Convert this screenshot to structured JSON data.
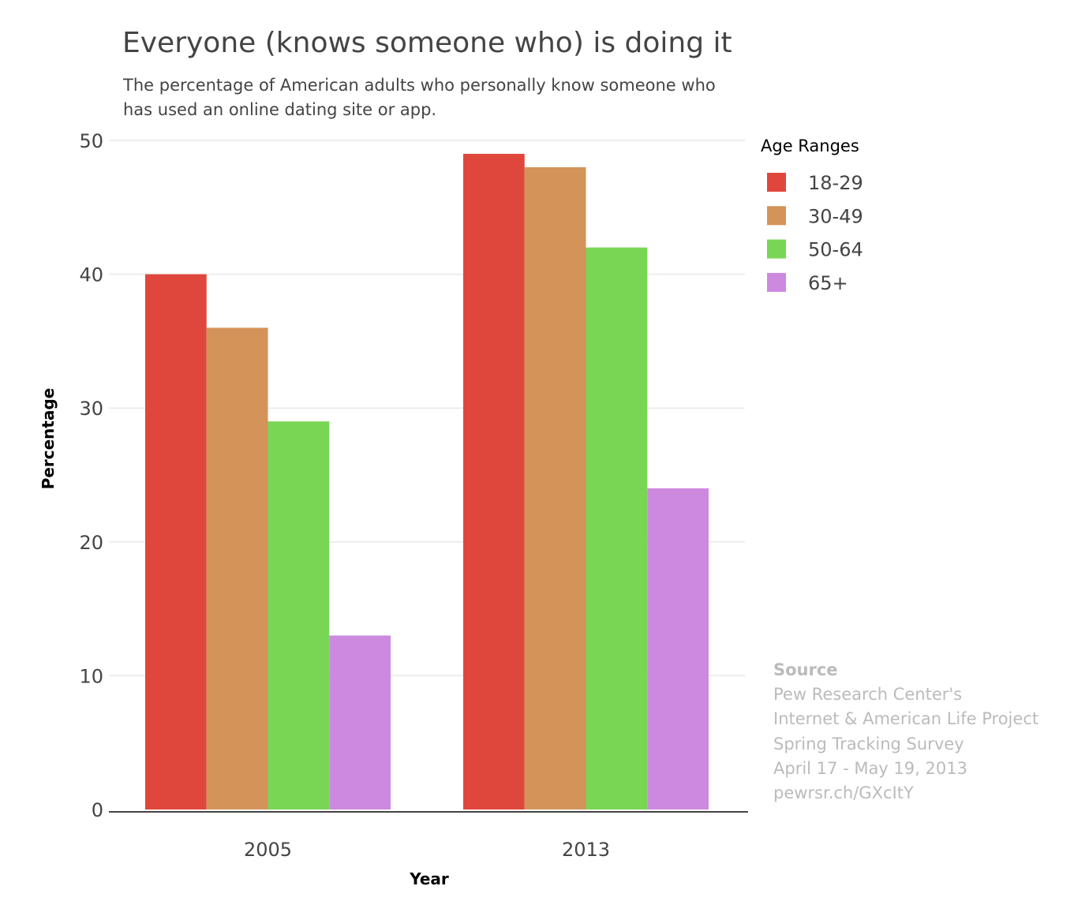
{
  "chart_data": {
    "type": "bar",
    "title": "Everyone (knows someone who) is doing it",
    "subtitle_lines": [
      "The percentage of American adults who personally know someone who",
      "has used an online dating site or app."
    ],
    "xlabel": "Year",
    "ylabel": "Percentage",
    "categories": [
      "2005",
      "2013"
    ],
    "ylim": [
      0,
      50
    ],
    "yticks": [
      0,
      10,
      20,
      30,
      40,
      50
    ],
    "grid": true,
    "legend_title": "Age Ranges",
    "legend_position": "top-right",
    "series": [
      {
        "name": "18-29",
        "color": "#e0473c",
        "values": [
          40,
          49
        ]
      },
      {
        "name": "30-49",
        "color": "#d39359",
        "values": [
          36,
          48
        ]
      },
      {
        "name": "50-64",
        "color": "#78d654",
        "values": [
          29,
          42
        ]
      },
      {
        "name": "65+",
        "color": "#cd89e0",
        "values": [
          13,
          24
        ]
      }
    ]
  },
  "source": {
    "heading": "Source",
    "lines": [
      "Pew Research Center's",
      "Internet & American Life Project",
      "Spring Tracking Survey",
      "April 17 - May 19, 2013",
      "pewrsr.ch/GXcItY"
    ]
  }
}
